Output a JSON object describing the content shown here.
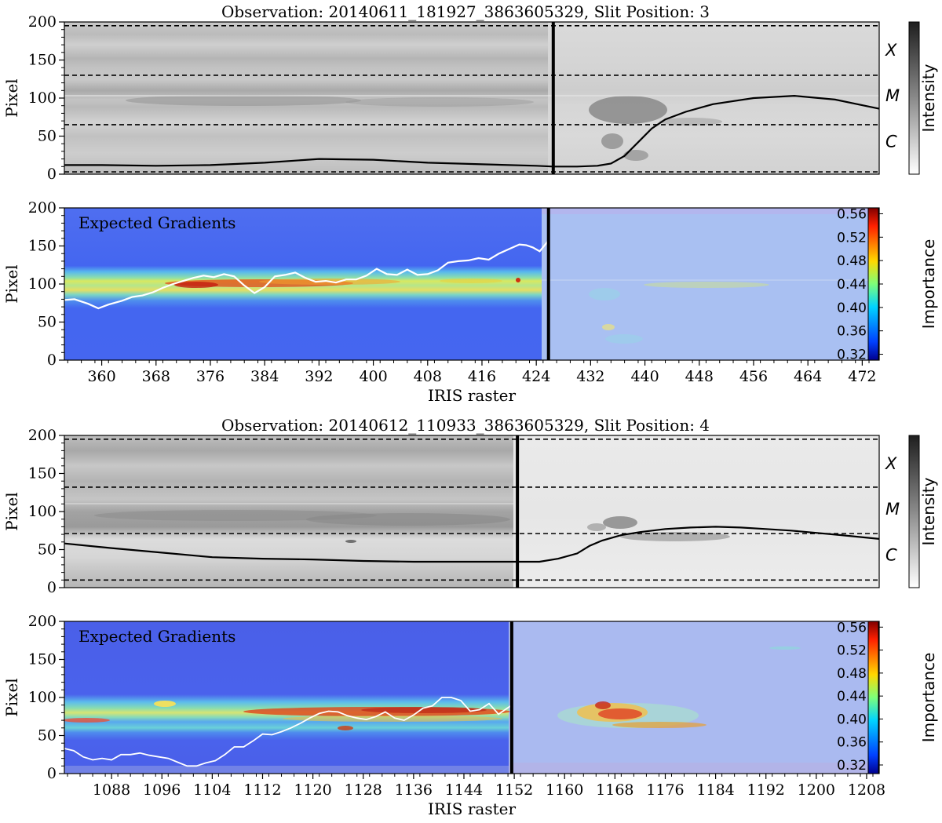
{
  "chart_data": [
    {
      "type": "heatmap",
      "title": "Observation: 20140611_181927_3863605329, Slit Position: 3",
      "ylabel": "Pixel",
      "ylim": [
        0,
        200
      ],
      "yticks": [
        0,
        50,
        100,
        150,
        200
      ],
      "xlim": [
        354.5,
        474.5
      ],
      "colormap": "gray",
      "colorbar": {
        "label": "Intensity"
      },
      "hlines": [
        3,
        65,
        130,
        195
      ],
      "region_labels": [
        {
          "label": "X",
          "y": 163
        },
        {
          "label": "M",
          "y": 103
        },
        {
          "label": "C",
          "y": 43
        }
      ],
      "vline": 426.5,
      "curve_color": "#000000",
      "curve": [
        [
          354.5,
          12
        ],
        [
          360,
          12
        ],
        [
          368,
          11
        ],
        [
          376,
          12
        ],
        [
          384,
          15
        ],
        [
          392,
          20
        ],
        [
          400,
          19
        ],
        [
          408,
          15
        ],
        [
          416,
          13
        ],
        [
          424,
          11
        ],
        [
          426.5,
          10
        ],
        [
          430,
          10
        ],
        [
          433,
          11
        ],
        [
          435,
          14
        ],
        [
          437,
          24
        ],
        [
          439,
          42
        ],
        [
          441,
          60
        ],
        [
          443,
          72
        ],
        [
          446,
          82
        ],
        [
          450,
          92
        ],
        [
          456,
          100
        ],
        [
          462,
          103
        ],
        [
          468,
          98
        ],
        [
          474.5,
          86
        ]
      ]
    },
    {
      "type": "heatmap",
      "title": "",
      "label": "Expected Gradients",
      "xlabel": "IRIS raster",
      "ylabel": "Pixel",
      "ylim": [
        0,
        200
      ],
      "yticks": [
        0,
        50,
        100,
        150,
        200
      ],
      "xlim": [
        354.5,
        474.5
      ],
      "xticks": [
        360,
        368,
        376,
        384,
        392,
        400,
        408,
        416,
        424,
        432,
        440,
        448,
        456,
        464,
        472
      ],
      "colormap": "jet",
      "colorbar": {
        "label": "Importance",
        "ticks": [
          "0.32",
          "0.36",
          "0.40",
          "0.44",
          "0.48",
          "0.52",
          "0.56"
        ],
        "range": [
          0.31,
          0.57
        ]
      },
      "vline": 425.8,
      "curve_color": "#ffffff",
      "curve": [
        [
          354.5,
          79
        ],
        [
          356,
          80
        ],
        [
          358,
          74
        ],
        [
          359.5,
          68
        ],
        [
          361,
          73
        ],
        [
          363,
          78
        ],
        [
          364.5,
          83
        ],
        [
          366,
          85
        ],
        [
          367.5,
          89
        ],
        [
          369,
          95
        ],
        [
          370.5,
          100
        ],
        [
          372,
          104
        ],
        [
          373.5,
          108
        ],
        [
          375,
          111
        ],
        [
          376.5,
          109
        ],
        [
          378,
          113
        ],
        [
          379.5,
          110
        ],
        [
          381,
          98
        ],
        [
          382.5,
          88
        ],
        [
          384,
          96
        ],
        [
          385.5,
          110
        ],
        [
          387,
          112
        ],
        [
          388.5,
          115
        ],
        [
          390,
          108
        ],
        [
          391.5,
          103
        ],
        [
          393,
          104
        ],
        [
          394.5,
          102
        ],
        [
          396,
          106
        ],
        [
          397.5,
          106
        ],
        [
          399,
          111
        ],
        [
          400.5,
          120
        ],
        [
          402,
          113
        ],
        [
          403.5,
          112
        ],
        [
          405,
          119
        ],
        [
          406.5,
          112
        ],
        [
          408,
          113
        ],
        [
          409.5,
          118
        ],
        [
          411,
          128
        ],
        [
          412.5,
          130
        ],
        [
          414,
          131
        ],
        [
          415.5,
          134
        ],
        [
          417,
          132
        ],
        [
          418.5,
          140
        ],
        [
          420,
          146
        ],
        [
          421.5,
          152
        ],
        [
          422.5,
          151
        ],
        [
          423.5,
          148
        ],
        [
          424.5,
          143
        ],
        [
          425.8,
          157
        ]
      ]
    },
    {
      "type": "heatmap",
      "title": "Observation: 20140612_110933_3863605329, Slit Position: 4",
      "ylabel": "Pixel",
      "ylim": [
        0,
        200
      ],
      "yticks": [
        0,
        50,
        100,
        150,
        200
      ],
      "xlim": [
        1080.5,
        1210
      ],
      "colormap": "gray",
      "colorbar": {
        "label": "Intensity"
      },
      "hlines": [
        10,
        71,
        132,
        195
      ],
      "region_labels": [
        {
          "label": "X",
          "y": 163
        },
        {
          "label": "M",
          "y": 103
        },
        {
          "label": "C",
          "y": 43
        }
      ],
      "vline": 1152.5,
      "curve_color": "#000000",
      "curve": [
        [
          1080.5,
          58
        ],
        [
          1088,
          52
        ],
        [
          1096,
          46
        ],
        [
          1104,
          40
        ],
        [
          1112,
          38
        ],
        [
          1120,
          37
        ],
        [
          1128,
          35
        ],
        [
          1136,
          34
        ],
        [
          1144,
          34
        ],
        [
          1152.5,
          34
        ],
        [
          1156,
          34
        ],
        [
          1159,
          38
        ],
        [
          1162,
          45
        ],
        [
          1164,
          55
        ],
        [
          1166,
          62
        ],
        [
          1169,
          69
        ],
        [
          1172,
          73
        ],
        [
          1176,
          77
        ],
        [
          1180,
          79
        ],
        [
          1184,
          80
        ],
        [
          1188,
          79
        ],
        [
          1192,
          77
        ],
        [
          1196,
          75
        ],
        [
          1200,
          72
        ],
        [
          1204,
          69
        ],
        [
          1210,
          64
        ]
      ]
    },
    {
      "type": "heatmap",
      "title": "",
      "label": "Expected Gradients",
      "xlabel": "IRIS raster",
      "ylabel": "Pixel",
      "ylim": [
        0,
        200
      ],
      "yticks": [
        0,
        50,
        100,
        150,
        200
      ],
      "xlim": [
        1080.5,
        1210
      ],
      "xticks": [
        1088,
        1096,
        1104,
        1112,
        1120,
        1128,
        1136,
        1144,
        1152,
        1160,
        1168,
        1176,
        1184,
        1192,
        1200,
        1208
      ],
      "colormap": "jet",
      "colorbar": {
        "label": "Importance",
        "ticks": [
          "0.32",
          "0.36",
          "0.40",
          "0.44",
          "0.48",
          "0.52",
          "0.56"
        ],
        "range": [
          0.305,
          0.57
        ]
      },
      "vline": 1151.6,
      "curve_color": "#ffffff",
      "curve": [
        [
          1080.5,
          33
        ],
        [
          1082,
          30
        ],
        [
          1083.5,
          22
        ],
        [
          1085,
          18
        ],
        [
          1086.5,
          20
        ],
        [
          1088,
          18
        ],
        [
          1089.5,
          25
        ],
        [
          1091,
          25
        ],
        [
          1092.5,
          27
        ],
        [
          1094,
          24
        ],
        [
          1095.5,
          22
        ],
        [
          1097,
          20
        ],
        [
          1098.5,
          15
        ],
        [
          1100,
          10
        ],
        [
          1101.5,
          10
        ],
        [
          1103,
          14
        ],
        [
          1104.5,
          17
        ],
        [
          1106,
          25
        ],
        [
          1107.5,
          35
        ],
        [
          1109,
          35
        ],
        [
          1110.5,
          43
        ],
        [
          1112,
          52
        ],
        [
          1113.5,
          51
        ],
        [
          1115,
          55
        ],
        [
          1116.5,
          60
        ],
        [
          1118,
          66
        ],
        [
          1119.5,
          73
        ],
        [
          1121,
          79
        ],
        [
          1122.5,
          82
        ],
        [
          1124,
          81
        ],
        [
          1125.5,
          76
        ],
        [
          1127,
          73
        ],
        [
          1128.5,
          71
        ],
        [
          1130,
          75
        ],
        [
          1131.5,
          81
        ],
        [
          1133,
          73
        ],
        [
          1134.5,
          70
        ],
        [
          1136,
          77
        ],
        [
          1137.5,
          86
        ],
        [
          1139,
          89
        ],
        [
          1140.5,
          100
        ],
        [
          1142,
          100
        ],
        [
          1143.5,
          96
        ],
        [
          1145,
          82
        ],
        [
          1146.5,
          84
        ],
        [
          1148,
          92
        ],
        [
          1149.5,
          78
        ],
        [
          1151.6,
          90
        ]
      ]
    }
  ]
}
